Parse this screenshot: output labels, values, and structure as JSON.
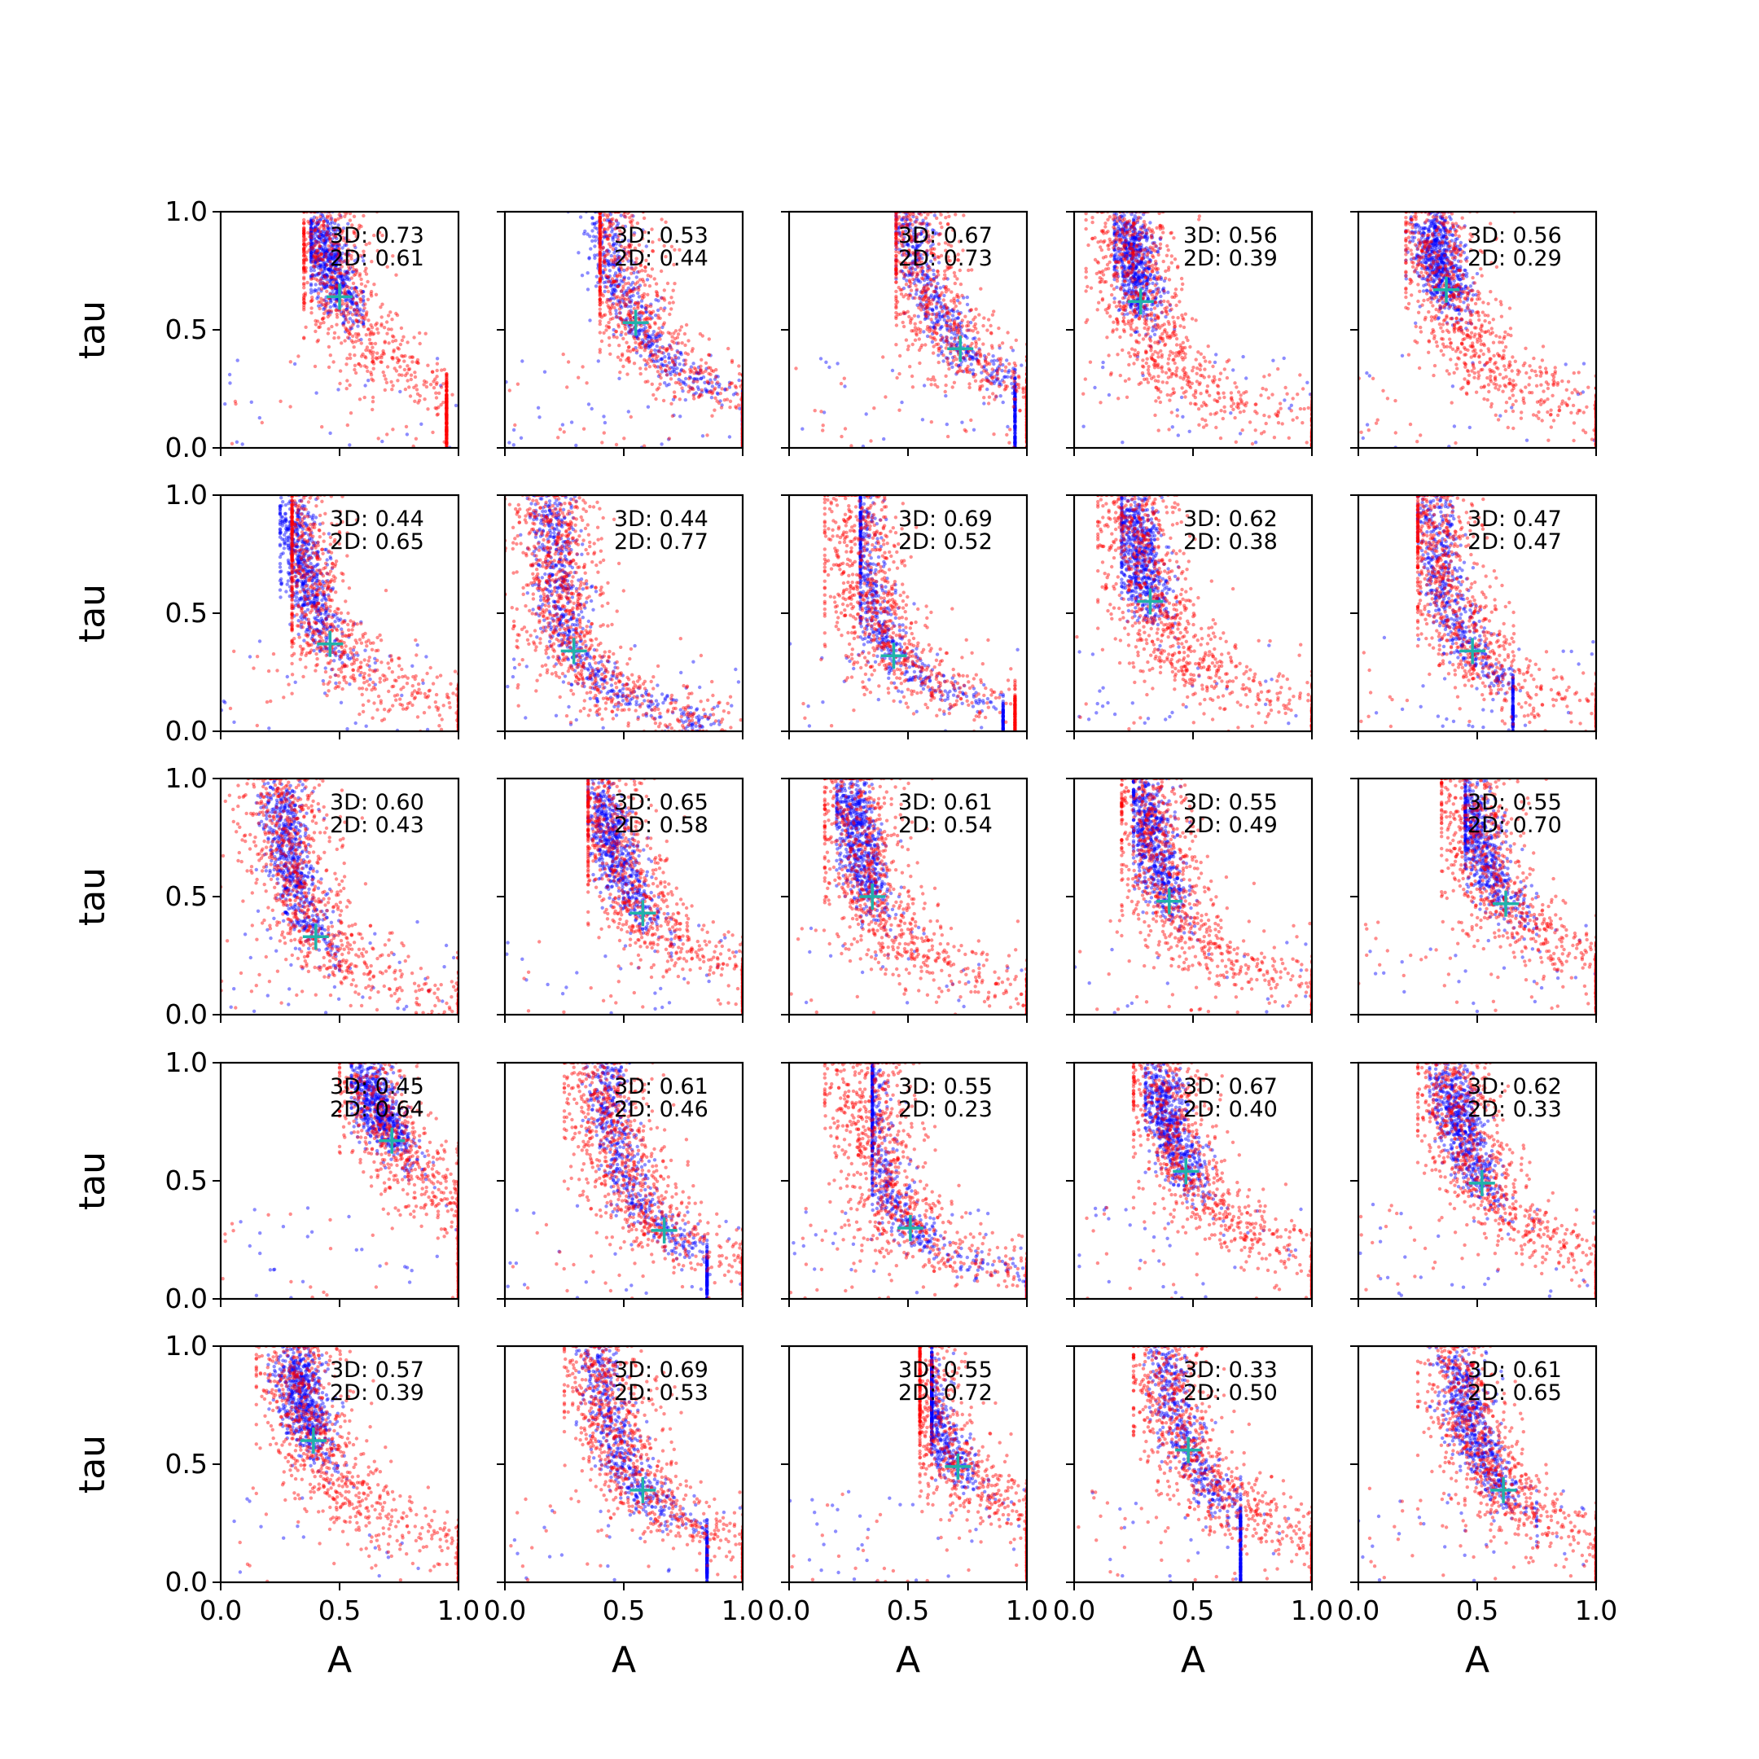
{
  "chart_data": {
    "type": "scatter",
    "grid": {
      "rows": 5,
      "cols": 5
    },
    "xlabel": "A",
    "ylabel": "tau",
    "xlim": [
      0,
      1
    ],
    "ylim": [
      0,
      1
    ],
    "xticks": [
      "0.0",
      "0.5",
      "1.0"
    ],
    "yticks": [
      "0.0",
      "0.5",
      "1.0"
    ],
    "grid_lines": false,
    "series_colors": {
      "blue": "#0000ff",
      "red": "#ff0000",
      "marker": "#20b2aa"
    },
    "panels": [
      {
        "a3d": "3D: 0.73",
        "a2d": "2D: 0.61",
        "marker": [
          0.5,
          0.64
        ],
        "blue_band": {
          "x0": 0.43,
          "x1": 0.55,
          "kind": "upper"
        },
        "red_band": {
          "x0": 0.4,
          "x1": 0.9
        }
      },
      {
        "a3d": "3D: 0.53",
        "a2d": "2D: 0.44",
        "marker": [
          0.55,
          0.53
        ],
        "blue_band": {
          "x0": 0.3,
          "x1": 0.95,
          "kind": "full"
        },
        "red_band": {
          "x0": 0.45,
          "x1": 1.0
        }
      },
      {
        "a3d": "3D: 0.67",
        "a2d": "2D: 0.73",
        "marker": [
          0.72,
          0.42
        ],
        "blue_band": {
          "x0": 0.5,
          "x1": 0.9,
          "kind": "full"
        },
        "red_band": {
          "x0": 0.5,
          "x1": 1.0
        }
      },
      {
        "a3d": "3D: 0.56",
        "a2d": "2D: 0.39",
        "marker": [
          0.28,
          0.62
        ],
        "blue_band": {
          "x0": 0.22,
          "x1": 0.4,
          "kind": "upper"
        },
        "red_band": {
          "x0": 0.1,
          "x1": 1.0
        }
      },
      {
        "a3d": "3D: 0.56",
        "a2d": "2D: 0.29",
        "marker": [
          0.37,
          0.67
        ],
        "blue_band": {
          "x0": 0.25,
          "x1": 0.45,
          "kind": "upper"
        },
        "red_band": {
          "x0": 0.25,
          "x1": 1.0
        }
      },
      {
        "a3d": "3D: 0.44",
        "a2d": "2D: 0.65",
        "marker": [
          0.46,
          0.37
        ],
        "blue_band": {
          "x0": 0.3,
          "x1": 0.6,
          "kind": "upper"
        },
        "red_band": {
          "x0": 0.35,
          "x1": 1.0
        }
      },
      {
        "a3d": "3D: 0.44",
        "a2d": "2D: 0.77",
        "marker": [
          0.29,
          0.34
        ],
        "blue_band": {
          "x0": 0.05,
          "x1": 0.95,
          "kind": "full"
        },
        "red_band": {
          "x0": 0.02,
          "x1": 0.9
        }
      },
      {
        "a3d": "3D: 0.69",
        "a2d": "2D: 0.52",
        "marker": [
          0.44,
          0.32
        ],
        "blue_band": {
          "x0": 0.35,
          "x1": 0.85,
          "kind": "full"
        },
        "red_band": {
          "x0": 0.2,
          "x1": 0.9
        }
      },
      {
        "a3d": "3D: 0.62",
        "a2d": "2D: 0.38",
        "marker": [
          0.32,
          0.55
        ],
        "blue_band": {
          "x0": 0.25,
          "x1": 0.45,
          "kind": "upper"
        },
        "red_band": {
          "x0": 0.15,
          "x1": 1.0
        }
      },
      {
        "a3d": "3D: 0.47",
        "a2d": "2D: 0.47",
        "marker": [
          0.48,
          0.34
        ],
        "blue_band": {
          "x0": 0.3,
          "x1": 0.6,
          "kind": "full"
        },
        "red_band": {
          "x0": 0.3,
          "x1": 1.0
        }
      },
      {
        "a3d": "3D: 0.60",
        "a2d": "2D: 0.43",
        "marker": [
          0.4,
          0.33
        ],
        "blue_band": {
          "x0": 0.2,
          "x1": 0.45,
          "kind": "upper"
        },
        "red_band": {
          "x0": 0.0,
          "x1": 1.0
        }
      },
      {
        "a3d": "3D: 0.65",
        "a2d": "2D: 0.58",
        "marker": [
          0.58,
          0.43
        ],
        "blue_band": {
          "x0": 0.4,
          "x1": 0.65,
          "kind": "upper"
        },
        "red_band": {
          "x0": 0.4,
          "x1": 0.95
        }
      },
      {
        "a3d": "3D: 0.61",
        "a2d": "2D: 0.54",
        "marker": [
          0.35,
          0.5
        ],
        "blue_band": {
          "x0": 0.25,
          "x1": 0.55,
          "kind": "upper"
        },
        "red_band": {
          "x0": 0.2,
          "x1": 1.0
        }
      },
      {
        "a3d": "3D: 0.55",
        "a2d": "2D: 0.49",
        "marker": [
          0.4,
          0.48
        ],
        "blue_band": {
          "x0": 0.3,
          "x1": 0.6,
          "kind": "upper"
        },
        "red_band": {
          "x0": 0.25,
          "x1": 1.0
        }
      },
      {
        "a3d": "3D: 0.55",
        "a2d": "2D: 0.70",
        "marker": [
          0.62,
          0.47
        ],
        "blue_band": {
          "x0": 0.5,
          "x1": 0.7,
          "kind": "upper"
        },
        "red_band": {
          "x0": 0.4,
          "x1": 1.0
        }
      },
      {
        "a3d": "3D: 0.45",
        "a2d": "2D: 0.64",
        "marker": [
          0.72,
          0.67
        ],
        "blue_band": {
          "x0": 0.6,
          "x1": 0.85,
          "kind": "upper"
        },
        "red_band": {
          "x0": 0.55,
          "x1": 1.0
        }
      },
      {
        "a3d": "3D: 0.61",
        "a2d": "2D: 0.46",
        "marker": [
          0.67,
          0.29
        ],
        "blue_band": {
          "x0": 0.35,
          "x1": 0.8,
          "kind": "full"
        },
        "red_band": {
          "x0": 0.3,
          "x1": 1.0
        }
      },
      {
        "a3d": "3D: 0.55",
        "a2d": "2D: 0.23",
        "marker": [
          0.51,
          0.3
        ],
        "blue_band": {
          "x0": 0.4,
          "x1": 0.95,
          "kind": "full"
        },
        "red_band": {
          "x0": 0.2,
          "x1": 0.95
        }
      },
      {
        "a3d": "3D: 0.67",
        "a2d": "2D: 0.40",
        "marker": [
          0.47,
          0.54
        ],
        "blue_band": {
          "x0": 0.35,
          "x1": 0.6,
          "kind": "upper"
        },
        "red_band": {
          "x0": 0.3,
          "x1": 1.0
        }
      },
      {
        "a3d": "3D: 0.62",
        "a2d": "2D: 0.33",
        "marker": [
          0.52,
          0.49
        ],
        "blue_band": {
          "x0": 0.35,
          "x1": 0.6,
          "kind": "upper"
        },
        "red_band": {
          "x0": 0.3,
          "x1": 1.0
        }
      },
      {
        "a3d": "3D: 0.57",
        "a2d": "2D: 0.39",
        "marker": [
          0.39,
          0.6
        ],
        "blue_band": {
          "x0": 0.25,
          "x1": 0.55,
          "kind": "upper"
        },
        "red_band": {
          "x0": 0.2,
          "x1": 1.0
        }
      },
      {
        "a3d": "3D: 0.69",
        "a2d": "2D: 0.53",
        "marker": [
          0.58,
          0.39
        ],
        "blue_band": {
          "x0": 0.35,
          "x1": 0.8,
          "kind": "full"
        },
        "red_band": {
          "x0": 0.3,
          "x1": 1.0
        }
      },
      {
        "a3d": "3D: 0.55",
        "a2d": "2D: 0.72",
        "marker": [
          0.71,
          0.49
        ],
        "blue_band": {
          "x0": 0.65,
          "x1": 1.0,
          "kind": "upper"
        },
        "red_band": {
          "x0": 0.6,
          "x1": 1.0
        }
      },
      {
        "a3d": "3D: 0.33",
        "a2d": "2D: 0.50",
        "marker": [
          0.48,
          0.56
        ],
        "blue_band": {
          "x0": 0.3,
          "x1": 0.65,
          "kind": "full"
        },
        "red_band": {
          "x0": 0.3,
          "x1": 1.0
        }
      },
      {
        "a3d": "3D: 0.61",
        "a2d": "2D: 0.65",
        "marker": [
          0.61,
          0.39
        ],
        "blue_band": {
          "x0": 0.35,
          "x1": 0.7,
          "kind": "upper"
        },
        "red_band": {
          "x0": 0.3,
          "x1": 1.0
        }
      }
    ]
  }
}
